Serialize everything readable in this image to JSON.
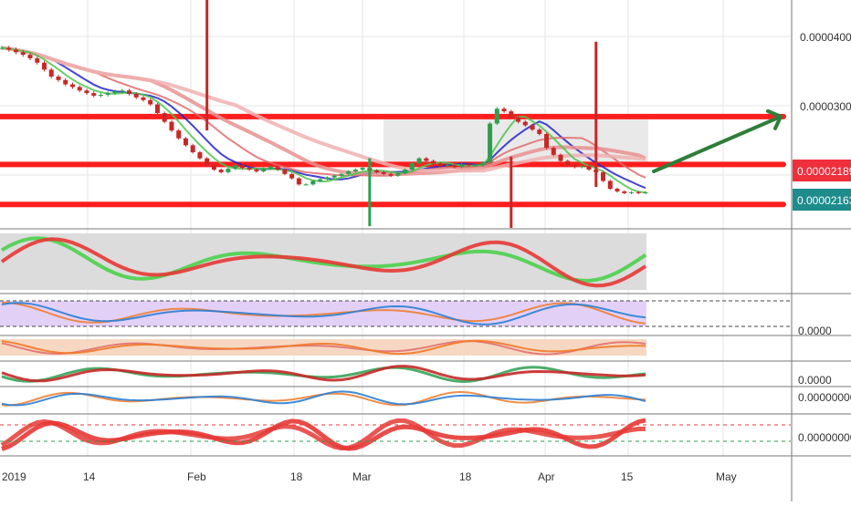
{
  "colors": {
    "background": "#ffffff",
    "grid": "#e6e6e6",
    "separator": "#777777",
    "up_candle": "#2e9e4f",
    "down_candle": "#c62828",
    "level_red": "#ff1e1e",
    "ma_blue": "#2323c8",
    "arrow": "#2f7d3a",
    "badge_red": "#ef2f3b",
    "badge_teal": "#1e8c8c",
    "fill_purple": "#e3d0f7",
    "fill_grey": "#dcdcdc",
    "fill_orange": "#f6d7c2"
  },
  "price_axis": {
    "ticks": [
      "0.00004000",
      "0.00003000"
    ],
    "current_price_badge": "0.00002189",
    "secondary_price_badge": "0.00002163"
  },
  "indicator_axis": {
    "pane2_tick": "0.0000",
    "pane3_tick": "0.0000",
    "pane4_tick": "0.00000000",
    "pane5_tick": "0.00000000"
  },
  "time_axis": {
    "labels": [
      "2019",
      "14",
      "Feb",
      "18",
      "Mar",
      "18",
      "Apr",
      "15",
      "May"
    ]
  },
  "chart_data": {
    "type": "candlestick",
    "title": "",
    "y_unit": "price",
    "ylim": [
      1.78e-05,
      4.4e-05
    ],
    "x_labels": [
      "2019",
      "14",
      "Feb",
      "18",
      "Mar",
      "18",
      "Apr",
      "15",
      "May"
    ],
    "grid": true,
    "horizontal_levels": [
      3.06e-05,
      2.51e-05,
      2.05e-05
    ],
    "projected_arrow": {
      "from": "2019-04-17",
      "to": "2019-05-06",
      "from_price": 2.2e-05,
      "to_price": 3e-05
    },
    "closes": [
      3.85e-05,
      3.83e-05,
      3.8e-05,
      3.77e-05,
      3.73e-05,
      3.68e-05,
      3.6e-05,
      3.52e-05,
      3.48e-05,
      3.43e-05,
      3.4e-05,
      3.36e-05,
      3.33e-05,
      3.3e-05,
      3.31e-05,
      3.33e-05,
      3.35e-05,
      3.36e-05,
      3.32e-05,
      3.28e-05,
      3.25e-05,
      3.2e-05,
      3.1e-05,
      3e-05,
      2.9e-05,
      2.81e-05,
      2.73e-05,
      2.65e-05,
      2.58e-05,
      2.5e-05,
      2.45e-05,
      2.42e-05,
      2.46e-05,
      2.5e-05,
      2.47e-05,
      2.45e-05,
      2.43e-05,
      2.46e-05,
      2.48e-05,
      2.45e-05,
      2.4e-05,
      2.35e-05,
      2.28e-05,
      2.28e-05,
      2.32e-05,
      2.34e-05,
      2.36e-05,
      2.38e-05,
      2.4e-05,
      2.43e-05,
      2.45e-05,
      2.47e-05,
      2.44e-05,
      2.42e-05,
      2.4e-05,
      2.38e-05,
      2.41e-05,
      2.45e-05,
      2.52e-05,
      2.58e-05,
      2.55e-05,
      2.52e-05,
      2.49e-05,
      2.5e-05,
      2.48e-05,
      2.51e-05,
      2.5e-05,
      2.5e-05,
      2.53e-05,
      2.98e-05,
      3.15e-05,
      3.12e-05,
      3.05e-05,
      3e-05,
      2.96e-05,
      2.91e-05,
      2.86e-05,
      2.7e-05,
      2.62e-05,
      2.55e-05,
      2.5e-05,
      2.48e-05,
      2.49e-05,
      2.45e-05,
      2.42e-05,
      2.32e-05,
      2.23e-05,
      2.2e-05,
      2.18e-05,
      2.19e-05,
      2.18e-05,
      2.19e-05
    ],
    "spikes": [
      {
        "index": 29,
        "high": 5.48e-05,
        "low": 2.9e-05
      },
      {
        "index": 52,
        "high": 2.58e-05,
        "low": 1.8e-05
      },
      {
        "index": 72,
        "high": 2.6e-05,
        "low": 1.7e-05
      },
      {
        "index": 84,
        "high": 3.92e-05,
        "low": 2.25e-05
      }
    ],
    "moving_averages": [
      {
        "color": "#2323c8",
        "period": 8
      },
      {
        "color": "#e06b6b",
        "period": 14
      },
      {
        "color": "#e98f8f",
        "period": 22
      },
      {
        "color": "#f0b0b0",
        "period": 34
      },
      {
        "color": "#4fc34f",
        "period": 5
      }
    ],
    "oscillators": [
      {
        "pane": 1,
        "type": "band-oscillator",
        "range": [
          0,
          100
        ]
      },
      {
        "pane": 2,
        "type": "rsi-like",
        "range": [
          0,
          100
        ]
      },
      {
        "pane": 3,
        "type": "macd-like",
        "range": [
          -1,
          1
        ]
      },
      {
        "pane": 4,
        "type": "stochastic-like",
        "range": [
          0,
          100
        ]
      },
      {
        "pane": 5,
        "type": "cycle-oscillator",
        "range": [
          0,
          100
        ]
      }
    ]
  }
}
